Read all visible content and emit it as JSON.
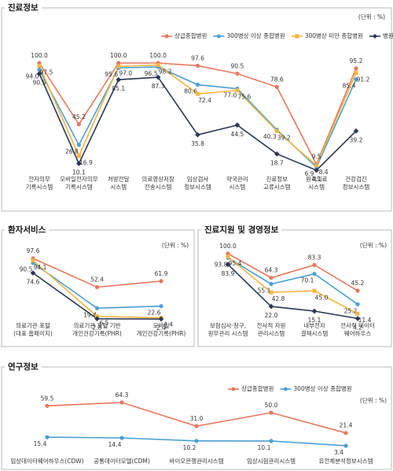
{
  "chart_data": [
    {
      "type": "line",
      "title": "진료정보",
      "subtitle": "(단위 : %)",
      "categories": [
        "전자의무\n기록시스템",
        "모바일전자의무\n기록시스템",
        "처방전달\n시스템",
        "의료영상저장\n전송시스템",
        "임상검사\n정보시스템",
        "약국관리\n시스템",
        "진료정보\n교류시스템",
        "원격의료\n시스템",
        "건강검진\n정보시스템"
      ],
      "series": [
        {
          "name": "상급종합병원",
          "color": "#e8775c",
          "values": [
            100,
            45.2,
            100,
            100,
            97.6,
            90.5,
            78.6,
            9.5,
            95.2
          ],
          "value_labels": [
            "100.0",
            "45.2",
            "100.0",
            "100.0",
            "97.6",
            "90.5",
            "78.6",
            "9.5",
            "95.2"
          ]
        },
        {
          "name": "300병상 이상 종합병원",
          "color": "#4a9fd4",
          "values": [
            94,
            26.8,
            95.6,
            96.5,
            80.6,
            77,
            40.3,
            6.9,
            85.4
          ],
          "value_labels": [
            "94.0",
            "26.8",
            "95.6",
            "96.5",
            "80.6",
            "77.0",
            "40.3",
            "6.9",
            "85.4"
          ]
        },
        {
          "name": "300병상 미만 종합병원",
          "color": "#f5b53d",
          "values": [
            97.5,
            16.9,
            97,
            98.2,
            72.4,
            75.6,
            39.2,
            8.4,
            91.2
          ],
          "value_labels": [
            "97.5",
            "16.9",
            "97.0",
            "98.2",
            "72.4",
            "75.6",
            "39.2",
            "8.4",
            "91.2"
          ]
        },
        {
          "name": "병원",
          "color": "#2b3656",
          "values": [
            90.5,
            10.1,
            85.1,
            87.3,
            35.8,
            44.5,
            18.7,
            4.1,
            39.2
          ],
          "value_labels": [
            "90.5",
            "10.1",
            "85.1",
            "87.3",
            "35.8",
            "44.5",
            "18.7",
            "4.1",
            "39.2"
          ]
        }
      ]
    },
    {
      "type": "line",
      "title": "환자서비스",
      "subtitle": "(단위 : %)",
      "categories": [
        "의료기관 포털\n(대표 홈페이지)",
        "의료기관 포털 기반\n개인건강기록(PHR)",
        "모바일\n개인건강기록(PHR)"
      ],
      "series": [
        {
          "color": "#e8775c",
          "values": [
            97.6,
            52.4,
            61.9
          ],
          "value_labels": [
            "97.6",
            "52.4",
            "61.9"
          ]
        },
        {
          "color": "#4a9fd4",
          "values": [
            90.5,
            19.4,
            22.6
          ],
          "value_labels": [
            "90.5",
            "19.4",
            "22.6"
          ]
        },
        {
          "color": "#f5b53d",
          "values": [
            94.1,
            6.5,
            4.4
          ],
          "value_labels": [
            "94.1",
            "6.5",
            "4.4"
          ]
        },
        {
          "color": "#2b3656",
          "values": [
            74.6,
            2.8,
            2.4
          ],
          "value_labels": [
            "74.6",
            "2.8",
            "2.4"
          ]
        }
      ]
    },
    {
      "type": "line",
      "title": "진료지원 및 경영정보",
      "subtitle": "(단위 : %)",
      "categories": [
        "보험심사·청구,\n원무관리 시스템",
        "전사적 자원\n관리시스템",
        "내부전자\n결재시스템",
        "전사적 데이터\n웨어하우스"
      ],
      "series": [
        {
          "color": "#e8775c",
          "values": [
            100,
            64.3,
            83.3,
            45.2
          ],
          "value_labels": [
            "100.0",
            "64.3",
            "83.3",
            "45.2"
          ]
        },
        {
          "color": "#4a9fd4",
          "values": [
            93.8,
            55.1,
            70.1,
            25.2
          ],
          "value_labels": [
            "93.8",
            "55.1",
            "70.1",
            "25.2"
          ]
        },
        {
          "color": "#f5b53d",
          "values": [
            95.4,
            42.8,
            45,
            11.4
          ],
          "value_labels": [
            "95.4",
            "42.8",
            "45.0",
            "11.4"
          ]
        },
        {
          "color": "#2b3656",
          "values": [
            83.9,
            22,
            15.1,
            4.2
          ],
          "value_labels": [
            "83.9",
            "22.0",
            "15.1",
            "4.2"
          ]
        }
      ]
    },
    {
      "type": "line",
      "title": "연구정보",
      "subtitle": "(단위 : %)",
      "categories": [
        "임상데이터웨어하우스(CDW)",
        "공통데이터모델(CDM)",
        "바이오은행관리시스템",
        "임상시험관리시스템",
        "유전체분석정보시스템"
      ],
      "series": [
        {
          "name": "상급종합병원",
          "color": "#e8775c",
          "values": [
            59.5,
            64.3,
            31,
            50,
            21.4
          ],
          "value_labels": [
            "59.5",
            "64.3",
            "31.0",
            "50.0",
            "21.4"
          ]
        },
        {
          "name": "300병상 이상 종합병원",
          "color": "#4a9fd4",
          "values": [
            15.4,
            14.4,
            10.2,
            10.1,
            3.4
          ],
          "value_labels": [
            "15.4",
            "14.4",
            "10.2",
            "10.1",
            "3.4"
          ]
        }
      ]
    }
  ]
}
